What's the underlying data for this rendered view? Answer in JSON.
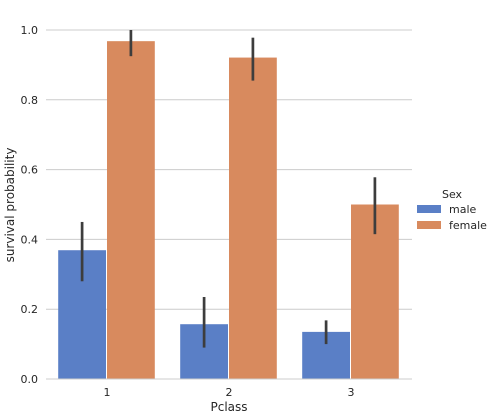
{
  "chart_data": {
    "type": "bar",
    "xlabel": "Pclass",
    "ylabel": "survival probability",
    "categories": [
      "1",
      "2",
      "3"
    ],
    "ylim": [
      0,
      1.0
    ],
    "yticks": [
      "0.0",
      "0.2",
      "0.4",
      "0.6",
      "0.8",
      "1.0"
    ],
    "grid": true,
    "legend_title": "Sex",
    "legend_position": "right",
    "series": [
      {
        "name": "male",
        "color": "#5a7fc6",
        "values": [
          0.369,
          0.157,
          0.135
        ],
        "err_low": [
          0.28,
          0.09,
          0.1
        ],
        "err_high": [
          0.45,
          0.235,
          0.168
        ]
      },
      {
        "name": "female",
        "color": "#d88a5e",
        "values": [
          0.968,
          0.921,
          0.5
        ],
        "err_low": [
          0.925,
          0.855,
          0.415
        ],
        "err_high": [
          1.0,
          0.978,
          0.578
        ]
      }
    ]
  }
}
